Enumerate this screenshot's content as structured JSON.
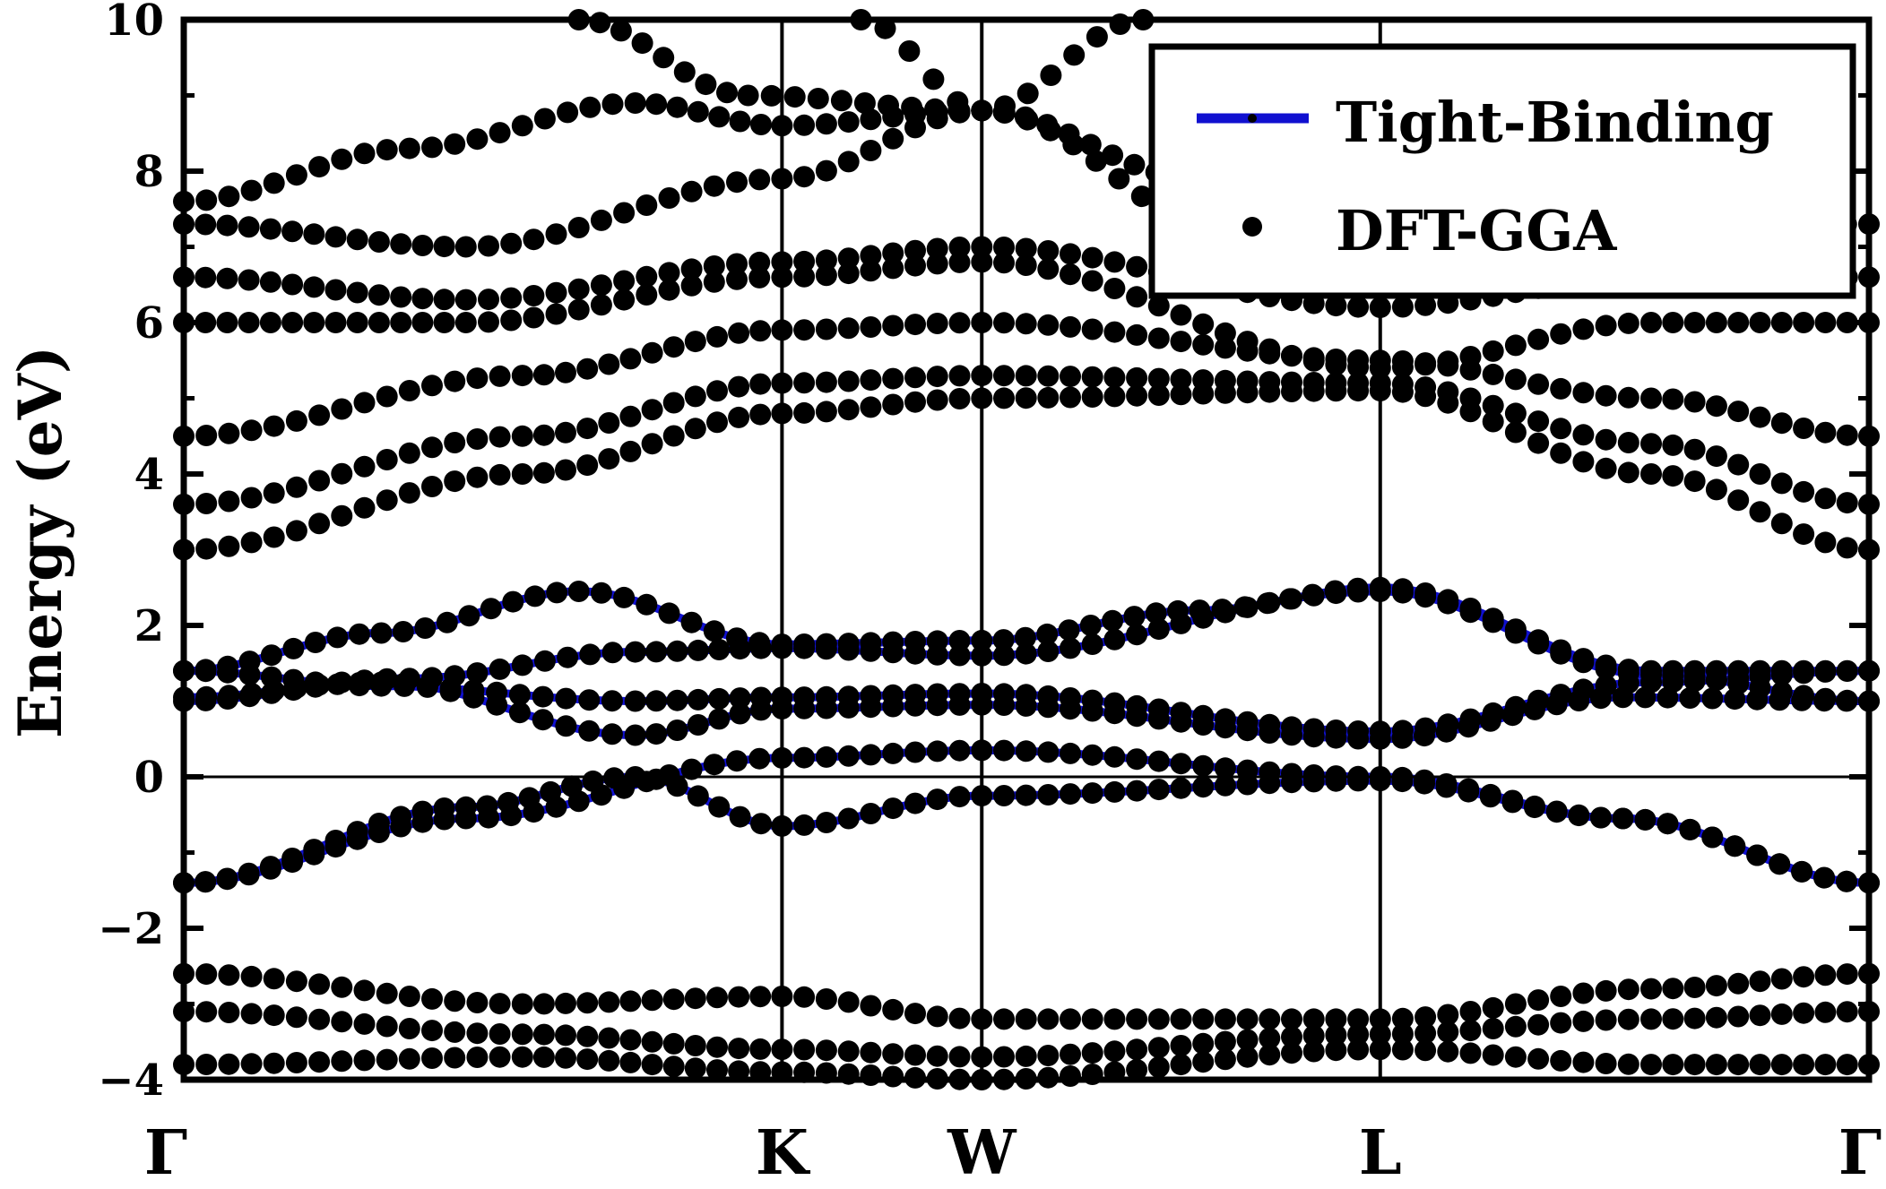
{
  "chart_data": {
    "type": "line",
    "title": "",
    "ylabel": "Energy   (eV)",
    "xlabel": "",
    "ylim": [
      -4,
      10
    ],
    "yticks": [
      -4,
      -2,
      0,
      2,
      4,
      6,
      8,
      10
    ],
    "ytick_labels": [
      "−4",
      "−2",
      "0",
      "2",
      "4",
      "6",
      "8",
      "10"
    ],
    "grid": false,
    "kpoints": [
      {
        "label": "Γ",
        "x": 0.0
      },
      {
        "label": "K",
        "x": 1.06
      },
      {
        "label": "W",
        "x": 1.414
      },
      {
        "label": "L",
        "x": 2.12
      },
      {
        "label": "Γ",
        "x": 2.986
      }
    ],
    "fermi_level": 0,
    "legend": {
      "position": "top-right",
      "entries": [
        {
          "label": "Tight-Binding",
          "style": "line",
          "color": "#1010d0"
        },
        {
          "label": "DFT-GGA",
          "style": "dot",
          "color": "#000000"
        }
      ]
    },
    "colors": {
      "tight_binding": "#1010d0",
      "dft": "#000000"
    },
    "series": [
      {
        "name": "Tight-Binding",
        "kind": "line",
        "bands": [
          {
            "k": [
              0,
              0.5,
              1.06,
              1.414,
              2.12,
              2.55,
              2.986
            ],
            "e": [
              -1.4,
              -0.55,
              0.25,
              0.35,
              0.0,
              -0.55,
              -1.4
            ]
          },
          {
            "k": [
              0,
              0.5,
              0.8,
              1.06,
              1.414,
              2.12,
              2.55,
              2.986
            ],
            "e": [
              -1.4,
              -0.4,
              0.0,
              -0.65,
              -0.25,
              -0.05,
              -0.55,
              -1.4
            ]
          },
          {
            "k": [
              0,
              0.35,
              0.8,
              1.06,
              1.414,
              2.12,
              2.55,
              2.986
            ],
            "e": [
              1.0,
              1.25,
              0.55,
              0.9,
              0.95,
              0.5,
              1.05,
              1.0
            ]
          },
          {
            "k": [
              0,
              0.35,
              0.8,
              1.06,
              1.414,
              2.12,
              2.6,
              2.986
            ],
            "e": [
              1.4,
              1.2,
              1.0,
              1.05,
              1.1,
              0.6,
              1.25,
              1.4
            ]
          },
          {
            "k": [
              0,
              0.4,
              0.8,
              1.06,
              1.414,
              2.12,
              2.6,
              2.986
            ],
            "e": [
              1.05,
              1.3,
              1.65,
              1.7,
              1.6,
              2.45,
              1.35,
              1.0
            ]
          },
          {
            "k": [
              0,
              0.35,
              0.7,
              1.06,
              1.414,
              1.8,
              2.12,
              2.6,
              2.986
            ],
            "e": [
              1.4,
              1.9,
              2.45,
              1.75,
              1.8,
              2.2,
              2.5,
              1.4,
              1.4
            ]
          }
        ]
      },
      {
        "name": "DFT-GGA",
        "kind": "dots",
        "bands": [
          {
            "k": [
              0,
              0.5,
              1.06,
              1.414,
              2.12,
              2.55,
              2.986
            ],
            "e": [
              -1.4,
              -0.55,
              0.25,
              0.35,
              0.0,
              -0.55,
              -1.4
            ]
          },
          {
            "k": [
              0,
              0.5,
              0.8,
              1.06,
              1.414,
              2.12,
              2.55,
              2.986
            ],
            "e": [
              -1.4,
              -0.4,
              0.0,
              -0.65,
              -0.25,
              -0.05,
              -0.55,
              -1.4
            ]
          },
          {
            "k": [
              0,
              0.35,
              0.8,
              1.06,
              1.414,
              2.12,
              2.55,
              2.986
            ],
            "e": [
              1.0,
              1.25,
              0.55,
              0.9,
              0.95,
              0.5,
              1.05,
              1.0
            ]
          },
          {
            "k": [
              0,
              0.35,
              0.8,
              1.06,
              1.414,
              2.12,
              2.6,
              2.986
            ],
            "e": [
              1.4,
              1.2,
              1.0,
              1.05,
              1.1,
              0.6,
              1.25,
              1.4
            ]
          },
          {
            "k": [
              0,
              0.4,
              0.8,
              1.06,
              1.414,
              2.12,
              2.6,
              2.986
            ],
            "e": [
              1.05,
              1.3,
              1.65,
              1.7,
              1.6,
              2.45,
              1.35,
              1.0
            ]
          },
          {
            "k": [
              0,
              0.35,
              0.7,
              1.06,
              1.414,
              1.8,
              2.12,
              2.6,
              2.986
            ],
            "e": [
              1.4,
              1.9,
              2.45,
              1.75,
              1.8,
              2.2,
              2.5,
              1.4,
              1.4
            ]
          },
          {
            "k": [
              0,
              0.6,
              1.06,
              1.414,
              2.12,
              2.6,
              2.986
            ],
            "e": [
              3.0,
              4.0,
              4.8,
              5.0,
              5.1,
              4.0,
              3.0
            ]
          },
          {
            "k": [
              0,
              0.6,
              1.06,
              1.414,
              2.12,
              2.6,
              2.986
            ],
            "e": [
              3.6,
              4.5,
              5.2,
              5.3,
              5.2,
              4.4,
              3.6
            ]
          },
          {
            "k": [
              0,
              0.6,
              1.06,
              1.414,
              2.12,
              2.6,
              2.986
            ],
            "e": [
              4.5,
              5.3,
              5.9,
              6.0,
              5.5,
              5.0,
              4.5
            ]
          },
          {
            "k": [
              0,
              0.5,
              1.06,
              1.414,
              2.12,
              2.6,
              2.986
            ],
            "e": [
              6.0,
              6.0,
              6.6,
              6.8,
              5.4,
              6.0,
              6.0
            ]
          },
          {
            "k": [
              0,
              0.5,
              1.06,
              1.414,
              2.12,
              2.6,
              2.986
            ],
            "e": [
              6.6,
              6.3,
              6.8,
              7.0,
              6.2,
              6.6,
              6.6
            ]
          },
          {
            "k": [
              0,
              0.5,
              1.06,
              1.414,
              1.9,
              2.986
            ],
            "e": [
              7.3,
              7.0,
              7.9,
              8.8,
              7.0,
              7.3
            ]
          },
          {
            "k": [
              0,
              0.4,
              0.8,
              1.06,
              1.414
            ],
            "e": [
              7.6,
              8.3,
              8.9,
              8.6,
              8.8
            ]
          },
          {
            "k": [
              0.7,
              1.0,
              1.414,
              1.7
            ],
            "e": [
              10.0,
              9.0,
              8.8,
              10.0
            ]
          },
          {
            "k": [
              1.2,
              1.414,
              1.8
            ],
            "e": [
              10.0,
              8.8,
              7.9
            ]
          },
          {
            "k": [
              0,
              0.6,
              1.06,
              1.414,
              2.12,
              2.6,
              2.986
            ],
            "e": [
              -2.6,
              -3.0,
              -2.9,
              -3.2,
              -3.2,
              -2.8,
              -2.6
            ]
          },
          {
            "k": [
              0,
              0.6,
              1.06,
              1.414,
              2.12,
              2.6,
              2.986
            ],
            "e": [
              -3.1,
              -3.4,
              -3.6,
              -3.7,
              -3.4,
              -3.2,
              -3.1
            ]
          },
          {
            "k": [
              0,
              0.6,
              1.06,
              1.414,
              2.12,
              2.6,
              2.986
            ],
            "e": [
              -3.8,
              -3.7,
              -3.9,
              -4.0,
              -3.6,
              -3.8,
              -3.8
            ]
          }
        ]
      }
    ]
  }
}
